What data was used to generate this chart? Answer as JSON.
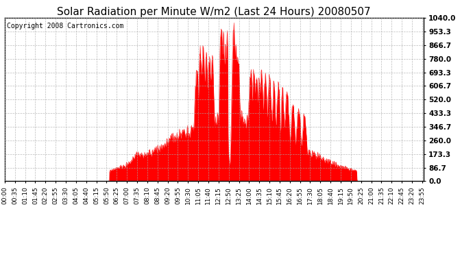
{
  "title": "Solar Radiation per Minute W/m2 (Last 24 Hours) 20080507",
  "copyright": "Copyright 2008 Cartronics.com",
  "y_max": 1040.0,
  "y_min": 0.0,
  "yticks": [
    0.0,
    86.7,
    173.3,
    260.0,
    346.7,
    433.3,
    520.0,
    606.7,
    693.3,
    780.0,
    866.7,
    953.3,
    1040.0
  ],
  "fill_color": "#FF0000",
  "line_color": "#FF0000",
  "bg_color": "#FFFFFF",
  "plot_bg": "#FFFFFF",
  "grid_color": "#AAAAAA",
  "dashed_line_color": "#FF0000",
  "title_fontsize": 11,
  "copyright_fontsize": 7,
  "tick_fontsize": 6.5,
  "ytick_fontsize": 7.5,
  "tick_interval_minutes": 35
}
